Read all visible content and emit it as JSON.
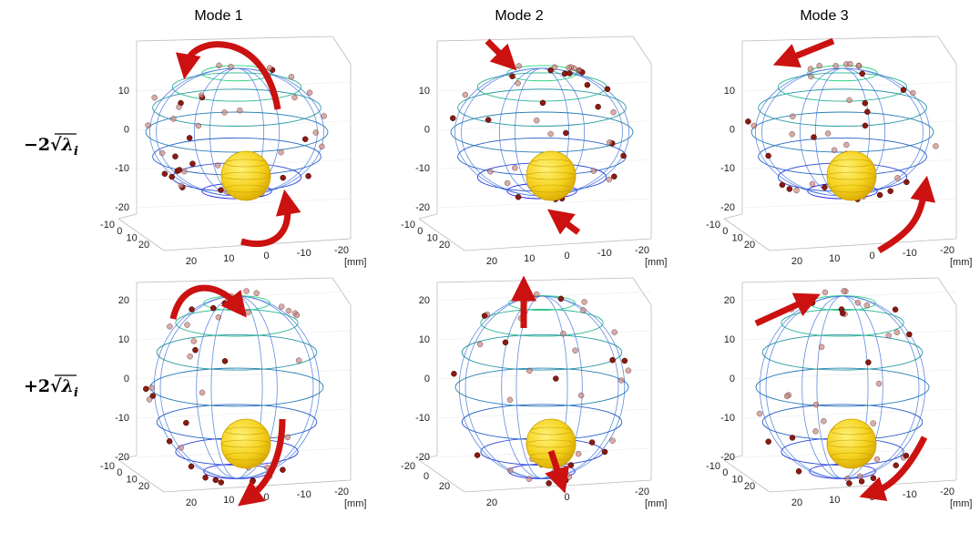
{
  "columns": [
    "Mode 1",
    "Mode 2",
    "Mode 3"
  ],
  "rows": [
    {
      "coefficient": "−2",
      "radical": "√",
      "symbol": "λ",
      "index": "i"
    },
    {
      "coefficient": "+2",
      "radical": "√",
      "symbol": "λ",
      "index": "i"
    }
  ],
  "panels": [
    {
      "z_ticks": [
        "10",
        "0",
        "-10",
        "-20"
      ],
      "left_ticks": [
        "-10",
        "0",
        "10",
        "20"
      ],
      "right_ticks": [
        "20",
        "10",
        "0",
        "-10",
        "-20"
      ],
      "unit": "[mm]"
    },
    {
      "z_ticks": [
        "10",
        "0",
        "-10",
        "-20"
      ],
      "left_ticks": [
        "-10",
        "0",
        "10",
        "20"
      ],
      "right_ticks": [
        "20",
        "10",
        "0",
        "-10",
        "-20"
      ],
      "unit": "[mm]"
    },
    {
      "z_ticks": [
        "10",
        "0",
        "-10",
        "-20"
      ],
      "left_ticks": [
        "-10",
        "0",
        "10",
        "20"
      ],
      "right_ticks": [
        "20",
        "10",
        "0",
        "-10",
        "-20"
      ],
      "unit": "[mm]"
    },
    {
      "z_ticks": [
        "20",
        "10",
        "0",
        "-10",
        "-20"
      ],
      "left_ticks": [
        "-10",
        "0",
        "10",
        "20"
      ],
      "right_ticks": [
        "20",
        "10",
        "0",
        "-10",
        "-20"
      ],
      "unit": "[mm]"
    },
    {
      "z_ticks": [
        "20",
        "10",
        "0",
        "-10",
        "-20"
      ],
      "left_ticks": [
        "-20",
        "0",
        "20"
      ],
      "right_ticks": [
        "20",
        "0",
        "-20"
      ],
      "unit": "[mm]"
    },
    {
      "z_ticks": [
        "20",
        "10",
        "0",
        "-10",
        "-20"
      ],
      "left_ticks": [
        "-10",
        "0",
        "10",
        "20"
      ],
      "right_ticks": [
        "20",
        "10",
        "0",
        "-10",
        "-20"
      ],
      "unit": "[mm]"
    }
  ]
}
